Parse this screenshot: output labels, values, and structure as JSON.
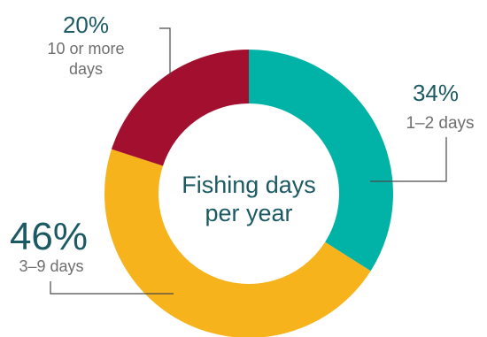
{
  "chart_data": {
    "type": "pie",
    "style": "donut",
    "center_label": [
      "Fishing days",
      "per year"
    ],
    "slices": [
      {
        "label": "1–2 days",
        "value": 34,
        "value_label": "34%",
        "color": "#00b3a6"
      },
      {
        "label": "3–9 days",
        "value": 46,
        "value_label": "46%",
        "color": "#f7b31b"
      },
      {
        "label_lines": [
          "10 or more",
          "days"
        ],
        "value": 20,
        "value_label": "20%",
        "color": "#a30f2f"
      }
    ]
  }
}
